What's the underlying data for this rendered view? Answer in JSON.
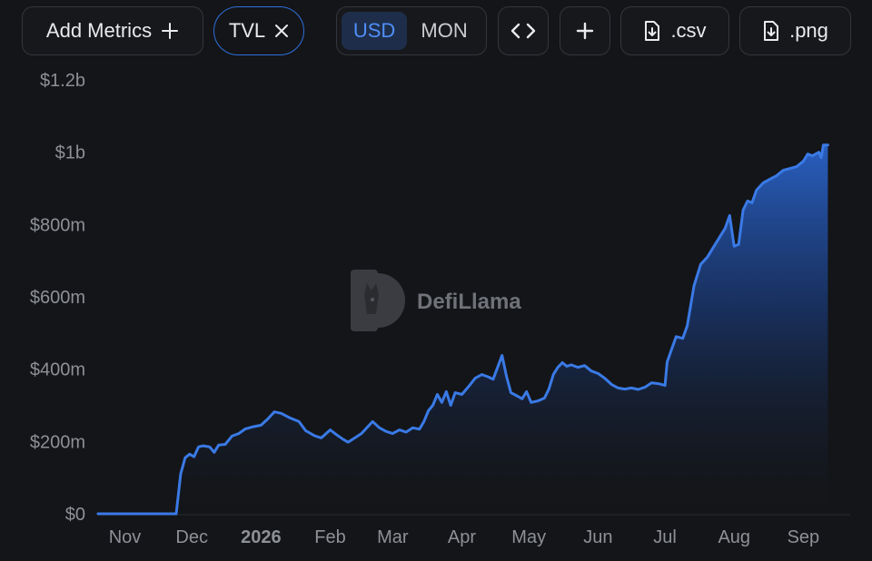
{
  "toolbar": {
    "add_metrics_label": "Add Metrics",
    "metric_chip_label": "TVL",
    "unit_options": [
      "USD",
      "MON"
    ],
    "selected_unit": "USD",
    "csv_label": ".csv",
    "png_label": ".png",
    "icons": {
      "add": "plus-icon",
      "remove": "close-icon",
      "embed": "code-icon",
      "plus": "plus-icon",
      "download": "file-download-icon"
    }
  },
  "watermark": {
    "text": "DefiLlama",
    "icon": "llama-logo"
  },
  "colors": {
    "line": "#3a7ae6",
    "accent": "#2f6fdc",
    "background": "#141518"
  },
  "chart_data": {
    "type": "area",
    "title": "",
    "xlabel": "",
    "ylabel": "",
    "ylim": [
      0,
      1200000000
    ],
    "y_ticks": [
      {
        "value": 0,
        "label": "$0"
      },
      {
        "value": 200000000,
        "label": "$200m"
      },
      {
        "value": 400000000,
        "label": "$400m"
      },
      {
        "value": 600000000,
        "label": "$600m"
      },
      {
        "value": 800000000,
        "label": "$800m"
      },
      {
        "value": 1000000000,
        "label": "$1b"
      },
      {
        "value": 1200000000,
        "label": "$1.2b"
      }
    ],
    "xlim": [
      "2025-10-20",
      "2026-09-22"
    ],
    "x_ticks": [
      {
        "date": "2025-11-01",
        "label": "Nov",
        "bold": false
      },
      {
        "date": "2025-12-01",
        "label": "Dec",
        "bold": false
      },
      {
        "date": "2026-01-01",
        "label": "2026",
        "bold": true
      },
      {
        "date": "2026-02-01",
        "label": "Feb",
        "bold": false
      },
      {
        "date": "2026-03-01",
        "label": "Mar",
        "bold": false
      },
      {
        "date": "2026-04-01",
        "label": "Apr",
        "bold": false
      },
      {
        "date": "2026-05-01",
        "label": "May",
        "bold": false
      },
      {
        "date": "2026-06-01",
        "label": "Jun",
        "bold": false
      },
      {
        "date": "2026-07-01",
        "label": "Jul",
        "bold": false
      },
      {
        "date": "2026-08-01",
        "label": "Aug",
        "bold": false
      },
      {
        "date": "2026-09-01",
        "label": "Sep",
        "bold": false
      }
    ],
    "grid": false,
    "legend": "none",
    "series": [
      {
        "points": [
          [
            "2025-10-20",
            0
          ],
          [
            "2025-11-15",
            0
          ],
          [
            "2025-11-24",
            0
          ],
          [
            "2025-11-26",
            110000000
          ],
          [
            "2025-11-28",
            155000000
          ],
          [
            "2025-11-30",
            165000000
          ],
          [
            "2025-12-02",
            158000000
          ],
          [
            "2025-12-04",
            185000000
          ],
          [
            "2025-12-06",
            188000000
          ],
          [
            "2025-12-09",
            185000000
          ],
          [
            "2025-12-11",
            170000000
          ],
          [
            "2025-12-13",
            190000000
          ],
          [
            "2025-12-16",
            192000000
          ],
          [
            "2025-12-19",
            215000000
          ],
          [
            "2025-12-22",
            222000000
          ],
          [
            "2025-12-25",
            235000000
          ],
          [
            "2025-12-28",
            240000000
          ],
          [
            "2026-01-01",
            245000000
          ],
          [
            "2026-01-04",
            262000000
          ],
          [
            "2026-01-07",
            282000000
          ],
          [
            "2026-01-10",
            278000000
          ],
          [
            "2026-01-14",
            265000000
          ],
          [
            "2026-01-18",
            255000000
          ],
          [
            "2026-01-21",
            230000000
          ],
          [
            "2026-01-25",
            216000000
          ],
          [
            "2026-01-28",
            210000000
          ],
          [
            "2026-02-01",
            232000000
          ],
          [
            "2026-02-04",
            218000000
          ],
          [
            "2026-02-07",
            205000000
          ],
          [
            "2026-02-09",
            198000000
          ],
          [
            "2026-02-12",
            210000000
          ],
          [
            "2026-02-15",
            222000000
          ],
          [
            "2026-02-18",
            242000000
          ],
          [
            "2026-02-20",
            255000000
          ],
          [
            "2026-02-23",
            238000000
          ],
          [
            "2026-02-26",
            228000000
          ],
          [
            "2026-03-01",
            222000000
          ],
          [
            "2026-03-04",
            232000000
          ],
          [
            "2026-03-07",
            226000000
          ],
          [
            "2026-03-10",
            238000000
          ],
          [
            "2026-03-13",
            234000000
          ],
          [
            "2026-03-15",
            255000000
          ],
          [
            "2026-03-17",
            285000000
          ],
          [
            "2026-03-19",
            300000000
          ],
          [
            "2026-03-21",
            330000000
          ],
          [
            "2026-03-23",
            308000000
          ],
          [
            "2026-03-25",
            338000000
          ],
          [
            "2026-03-27",
            300000000
          ],
          [
            "2026-03-29",
            335000000
          ],
          [
            "2026-04-01",
            330000000
          ],
          [
            "2026-04-04",
            352000000
          ],
          [
            "2026-04-07",
            375000000
          ],
          [
            "2026-04-10",
            385000000
          ],
          [
            "2026-04-13",
            378000000
          ],
          [
            "2026-04-15",
            372000000
          ],
          [
            "2026-04-17",
            405000000
          ],
          [
            "2026-04-19",
            438000000
          ],
          [
            "2026-04-21",
            380000000
          ],
          [
            "2026-04-23",
            335000000
          ],
          [
            "2026-04-26",
            325000000
          ],
          [
            "2026-04-28",
            318000000
          ],
          [
            "2026-04-30",
            338000000
          ],
          [
            "2026-05-02",
            308000000
          ],
          [
            "2026-05-05",
            312000000
          ],
          [
            "2026-05-08",
            320000000
          ],
          [
            "2026-05-10",
            345000000
          ],
          [
            "2026-05-12",
            385000000
          ],
          [
            "2026-05-14",
            405000000
          ],
          [
            "2026-05-16",
            418000000
          ],
          [
            "2026-05-18",
            408000000
          ],
          [
            "2026-05-20",
            412000000
          ],
          [
            "2026-05-23",
            405000000
          ],
          [
            "2026-05-26",
            410000000
          ],
          [
            "2026-05-29",
            395000000
          ],
          [
            "2026-06-01",
            388000000
          ],
          [
            "2026-06-04",
            375000000
          ],
          [
            "2026-06-07",
            358000000
          ],
          [
            "2026-06-10",
            348000000
          ],
          [
            "2026-06-13",
            345000000
          ],
          [
            "2026-06-16",
            348000000
          ],
          [
            "2026-06-19",
            344000000
          ],
          [
            "2026-06-22",
            350000000
          ],
          [
            "2026-06-25",
            362000000
          ],
          [
            "2026-06-28",
            360000000
          ],
          [
            "2026-07-01",
            355000000
          ],
          [
            "2026-07-02",
            420000000
          ],
          [
            "2026-07-04",
            455000000
          ],
          [
            "2026-07-06",
            490000000
          ],
          [
            "2026-07-09",
            485000000
          ],
          [
            "2026-07-11",
            520000000
          ],
          [
            "2026-07-14",
            630000000
          ],
          [
            "2026-07-17",
            690000000
          ],
          [
            "2026-07-20",
            710000000
          ],
          [
            "2026-07-23",
            740000000
          ],
          [
            "2026-07-25",
            760000000
          ],
          [
            "2026-07-28",
            790000000
          ],
          [
            "2026-07-30",
            825000000
          ],
          [
            "2026-08-01",
            740000000
          ],
          [
            "2026-08-03",
            745000000
          ],
          [
            "2026-08-05",
            840000000
          ],
          [
            "2026-08-07",
            865000000
          ],
          [
            "2026-08-09",
            860000000
          ],
          [
            "2026-08-11",
            895000000
          ],
          [
            "2026-08-14",
            915000000
          ],
          [
            "2026-08-17",
            925000000
          ],
          [
            "2026-08-20",
            935000000
          ],
          [
            "2026-08-23",
            950000000
          ],
          [
            "2026-08-26",
            955000000
          ],
          [
            "2026-08-29",
            960000000
          ],
          [
            "2026-09-01",
            975000000
          ],
          [
            "2026-09-03",
            995000000
          ],
          [
            "2026-09-05",
            990000000
          ],
          [
            "2026-09-08",
            1000000000
          ],
          [
            "2026-09-09",
            985000000
          ],
          [
            "2026-09-10",
            1020000000
          ],
          [
            "2026-09-12",
            1020000000
          ]
        ]
      }
    ]
  }
}
